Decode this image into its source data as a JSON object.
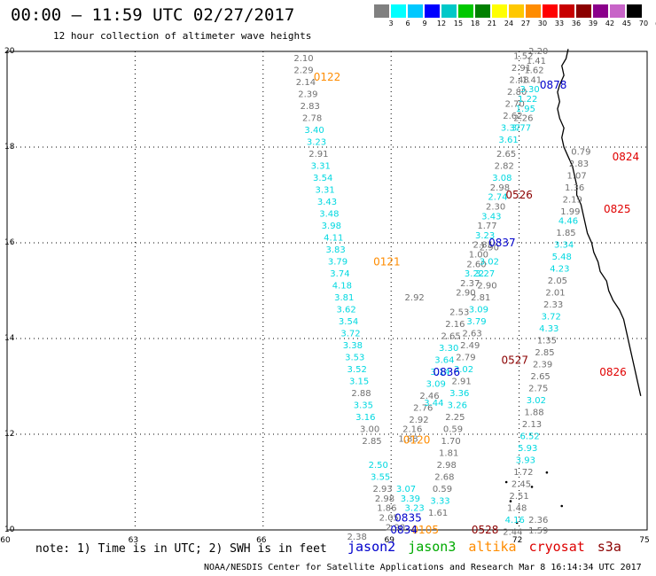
{
  "header": {
    "title": "00:00 – 11:59 UTC 02/27/2017",
    "subtitle": "12 hour collection of altimeter wave heights"
  },
  "colorbar": {
    "ticks": [
      "3",
      "6",
      "9",
      "12",
      "15",
      "18",
      "21",
      "24",
      "27",
      "30",
      "33",
      "36",
      "39",
      "42",
      "45",
      "70",
      "(ft)"
    ],
    "colors": [
      "#808080",
      "#00ffff",
      "#00c8ff",
      "#0000ff",
      "#00c8c8",
      "#00c800",
      "#008000",
      "#ffff00",
      "#ffc800",
      "#ff8c00",
      "#ff0000",
      "#c80000",
      "#8b0000",
      "#8b008b",
      "#c864c8",
      "#000000"
    ]
  },
  "map": {
    "x_ticks": [
      "60",
      "63",
      "66",
      "69",
      "72",
      "75"
    ],
    "y_ticks": [
      "10",
      "12",
      "14",
      "16",
      "18",
      "20"
    ],
    "x_range": [
      60,
      75
    ],
    "y_range": [
      10,
      20
    ]
  },
  "tracks": [
    {
      "label": "0122",
      "lon": 67.5,
      "lat": 19.46,
      "color": "#ff8c00"
    },
    {
      "label": "0121",
      "lon": 68.9,
      "lat": 15.6,
      "color": "#ff8c00"
    },
    {
      "label": "0120",
      "lon": 69.6,
      "lat": 11.88,
      "color": "#ff8c00"
    },
    {
      "label": "0105",
      "lon": 69.8,
      "lat": 10.0,
      "color": "#ff8c00"
    },
    {
      "label": "0878",
      "lon": 72.8,
      "lat": 19.3,
      "color": "#0000cc"
    },
    {
      "label": "0837",
      "lon": 71.6,
      "lat": 16.0,
      "color": "#0000cc"
    },
    {
      "label": "0836",
      "lon": 70.3,
      "lat": 13.3,
      "color": "#0000cc"
    },
    {
      "label": "0835",
      "lon": 69.4,
      "lat": 10.25,
      "color": "#0000cc"
    },
    {
      "label": "0834",
      "lon": 69.3,
      "lat": 10.0,
      "color": "#0000cc"
    },
    {
      "label": "0528",
      "lon": 71.2,
      "lat": 10.0,
      "color": "#8b0000"
    },
    {
      "label": "0526",
      "lon": 72.0,
      "lat": 17.0,
      "color": "#8b0000"
    },
    {
      "label": "0527",
      "lon": 71.9,
      "lat": 13.55,
      "color": "#8b0000"
    },
    {
      "label": "0824",
      "lon": 74.5,
      "lat": 17.8,
      "color": "#e00000"
    },
    {
      "label": "0825",
      "lon": 74.3,
      "lat": 16.7,
      "color": "#e00000"
    },
    {
      "label": "0826",
      "lon": 74.2,
      "lat": 13.3,
      "color": "#e00000"
    }
  ],
  "observations": [
    {
      "text": "2.10",
      "lon": 66.95,
      "lat": 19.85,
      "c": "g"
    },
    {
      "text": "2.29",
      "lon": 66.95,
      "lat": 19.6,
      "c": "g"
    },
    {
      "text": "2.14",
      "lon": 67.0,
      "lat": 19.35,
      "c": "g"
    },
    {
      "text": "2.39",
      "lon": 67.05,
      "lat": 19.1,
      "c": "g"
    },
    {
      "text": "2.83",
      "lon": 67.1,
      "lat": 18.85,
      "c": "g"
    },
    {
      "text": "2.78",
      "lon": 67.15,
      "lat": 18.6,
      "c": "g"
    },
    {
      "text": "3.40",
      "lon": 67.2,
      "lat": 18.35,
      "c": "c"
    },
    {
      "text": "3.23",
      "lon": 67.25,
      "lat": 18.1,
      "c": "c"
    },
    {
      "text": "2.91",
      "lon": 67.3,
      "lat": 17.85,
      "c": "g"
    },
    {
      "text": "3.31",
      "lon": 67.35,
      "lat": 17.6,
      "c": "c"
    },
    {
      "text": "3.54",
      "lon": 67.4,
      "lat": 17.35,
      "c": "c"
    },
    {
      "text": "3.31",
      "lon": 67.45,
      "lat": 17.1,
      "c": "c"
    },
    {
      "text": "3.43",
      "lon": 67.5,
      "lat": 16.85,
      "c": "c"
    },
    {
      "text": "3.48",
      "lon": 67.55,
      "lat": 16.6,
      "c": "c"
    },
    {
      "text": "3.98",
      "lon": 67.6,
      "lat": 16.35,
      "c": "c"
    },
    {
      "text": "4.11",
      "lon": 67.65,
      "lat": 16.1,
      "c": "c"
    },
    {
      "text": "3.83",
      "lon": 67.7,
      "lat": 15.85,
      "c": "c"
    },
    {
      "text": "3.79",
      "lon": 67.75,
      "lat": 15.6,
      "c": "c"
    },
    {
      "text": "3.74",
      "lon": 67.8,
      "lat": 15.35,
      "c": "c"
    },
    {
      "text": "4.18",
      "lon": 67.85,
      "lat": 15.1,
      "c": "c"
    },
    {
      "text": "3.81",
      "lon": 67.9,
      "lat": 14.85,
      "c": "c"
    },
    {
      "text": "3.62",
      "lon": 67.95,
      "lat": 14.6,
      "c": "c"
    },
    {
      "text": "3.54",
      "lon": 68.0,
      "lat": 14.35,
      "c": "c"
    },
    {
      "text": "3.72",
      "lon": 68.05,
      "lat": 14.1,
      "c": "c"
    },
    {
      "text": "3.38",
      "lon": 68.1,
      "lat": 13.85,
      "c": "c"
    },
    {
      "text": "3.53",
      "lon": 68.15,
      "lat": 13.6,
      "c": "c"
    },
    {
      "text": "3.52",
      "lon": 68.2,
      "lat": 13.35,
      "c": "c"
    },
    {
      "text": "3.15",
      "lon": 68.25,
      "lat": 13.1,
      "c": "c"
    },
    {
      "text": "2.88",
      "lon": 68.3,
      "lat": 12.85,
      "c": "g"
    },
    {
      "text": "3.35",
      "lon": 68.35,
      "lat": 12.6,
      "c": "c"
    },
    {
      "text": "3.16",
      "lon": 68.4,
      "lat": 12.35,
      "c": "c"
    },
    {
      "text": "3.00",
      "lon": 68.5,
      "lat": 12.1,
      "c": "g"
    },
    {
      "text": "2.85",
      "lon": 68.55,
      "lat": 11.85,
      "c": "g"
    },
    {
      "text": "2.50",
      "lon": 68.7,
      "lat": 11.35,
      "c": "c"
    },
    {
      "text": "3.55",
      "lon": 68.75,
      "lat": 11.1,
      "c": "c"
    },
    {
      "text": "2.93",
      "lon": 68.8,
      "lat": 10.85,
      "c": "g"
    },
    {
      "text": "2.98",
      "lon": 68.85,
      "lat": 10.65,
      "c": "g"
    },
    {
      "text": "1.86",
      "lon": 68.9,
      "lat": 10.45,
      "c": "g"
    },
    {
      "text": "2.05",
      "lon": 68.95,
      "lat": 10.25,
      "c": "g"
    },
    {
      "text": "2.90",
      "lon": 69.1,
      "lat": 10.05,
      "c": "g"
    },
    {
      "text": "2.38",
      "lon": 68.2,
      "lat": 9.85,
      "c": "g"
    },
    {
      "text": "2.92",
      "lon": 69.55,
      "lat": 14.85,
      "c": "g"
    },
    {
      "text": "2.46",
      "lon": 69.9,
      "lat": 12.8,
      "c": "g"
    },
    {
      "text": "2.76",
      "lon": 69.75,
      "lat": 12.55,
      "c": "g"
    },
    {
      "text": "2.92",
      "lon": 69.65,
      "lat": 12.3,
      "c": "g"
    },
    {
      "text": "2.16",
      "lon": 69.5,
      "lat": 12.1,
      "c": "g"
    },
    {
      "text": "1.88",
      "lon": 69.4,
      "lat": 11.9,
      "c": "g"
    },
    {
      "text": "3.44",
      "lon": 70.0,
      "lat": 12.65,
      "c": "c"
    },
    {
      "text": "3.09",
      "lon": 70.05,
      "lat": 13.05,
      "c": "c"
    },
    {
      "text": "3.14",
      "lon": 70.15,
      "lat": 13.3,
      "c": "c"
    },
    {
      "text": "3.64",
      "lon": 70.25,
      "lat": 13.55,
      "c": "c"
    },
    {
      "text": "3.30",
      "lon": 70.35,
      "lat": 13.8,
      "c": "c"
    },
    {
      "text": "2.65",
      "lon": 70.4,
      "lat": 14.05,
      "c": "g"
    },
    {
      "text": "2.16",
      "lon": 70.5,
      "lat": 14.3,
      "c": "g"
    },
    {
      "text": "2.53",
      "lon": 70.6,
      "lat": 14.55,
      "c": "g"
    },
    {
      "text": "2.90",
      "lon": 70.75,
      "lat": 14.95,
      "c": "g"
    },
    {
      "text": "2.37",
      "lon": 70.85,
      "lat": 15.15,
      "c": "g"
    },
    {
      "text": "3.22",
      "lon": 70.95,
      "lat": 15.35,
      "c": "c"
    },
    {
      "text": "2.60",
      "lon": 71.0,
      "lat": 15.55,
      "c": "g"
    },
    {
      "text": "1.00",
      "lon": 71.05,
      "lat": 15.75,
      "c": "g"
    },
    {
      "text": "2.85",
      "lon": 71.15,
      "lat": 15.95,
      "c": "g"
    },
    {
      "text": "3.23",
      "lon": 71.2,
      "lat": 16.15,
      "c": "c"
    },
    {
      "text": "1.77",
      "lon": 71.25,
      "lat": 16.35,
      "c": "g"
    },
    {
      "text": "3.43",
      "lon": 71.35,
      "lat": 16.55,
      "c": "c"
    },
    {
      "text": "2.30",
      "lon": 71.45,
      "lat": 16.75,
      "c": "g"
    },
    {
      "text": "2.74",
      "lon": 71.5,
      "lat": 16.95,
      "c": "c"
    },
    {
      "text": "2.98",
      "lon": 71.55,
      "lat": 17.15,
      "c": "g"
    },
    {
      "text": "3.08",
      "lon": 71.6,
      "lat": 17.35,
      "c": "c"
    },
    {
      "text": "2.82",
      "lon": 71.65,
      "lat": 17.6,
      "c": "g"
    },
    {
      "text": "2.65",
      "lon": 71.7,
      "lat": 17.85,
      "c": "g"
    },
    {
      "text": "3.61",
      "lon": 71.75,
      "lat": 18.15,
      "c": "c"
    },
    {
      "text": "3.37",
      "lon": 71.8,
      "lat": 18.4,
      "c": "c"
    },
    {
      "text": "2.62",
      "lon": 71.85,
      "lat": 18.65,
      "c": "g"
    },
    {
      "text": "2.70",
      "lon": 71.9,
      "lat": 18.9,
      "c": "g"
    },
    {
      "text": "2.80",
      "lon": 71.95,
      "lat": 19.15,
      "c": "g"
    },
    {
      "text": "2.48",
      "lon": 72.0,
      "lat": 19.4,
      "c": "g"
    },
    {
      "text": "2.91",
      "lon": 72.05,
      "lat": 19.65,
      "c": "g"
    },
    {
      "text": "1.52",
      "lon": 72.1,
      "lat": 19.9,
      "c": "g"
    },
    {
      "text": "2.20",
      "lon": 72.45,
      "lat": 20.0,
      "c": "g"
    },
    {
      "text": "1.41",
      "lon": 72.4,
      "lat": 19.8,
      "c": "g"
    },
    {
      "text": "1.62",
      "lon": 72.35,
      "lat": 19.6,
      "c": "g"
    },
    {
      "text": "1.41",
      "lon": 72.3,
      "lat": 19.4,
      "c": "g"
    },
    {
      "text": "3.30",
      "lon": 72.25,
      "lat": 19.2,
      "c": "c"
    },
    {
      "text": "1.22",
      "lon": 72.2,
      "lat": 19.0,
      "c": "c"
    },
    {
      "text": "1.95",
      "lon": 72.15,
      "lat": 18.8,
      "c": "c"
    },
    {
      "text": "2.26",
      "lon": 72.1,
      "lat": 18.6,
      "c": "g"
    },
    {
      "text": "3.77",
      "lon": 72.05,
      "lat": 18.4,
      "c": "c"
    },
    {
      "text": "2.90",
      "lon": 71.3,
      "lat": 15.9,
      "c": "g"
    },
    {
      "text": "3.02",
      "lon": 71.3,
      "lat": 15.6,
      "c": "c"
    },
    {
      "text": "3.27",
      "lon": 71.2,
      "lat": 15.35,
      "c": "c"
    },
    {
      "text": "2.90",
      "lon": 71.25,
      "lat": 15.1,
      "c": "g"
    },
    {
      "text": "2.81",
      "lon": 71.1,
      "lat": 14.85,
      "c": "g"
    },
    {
      "text": "3.09",
      "lon": 71.05,
      "lat": 14.6,
      "c": "c"
    },
    {
      "text": "3.79",
      "lon": 71.0,
      "lat": 14.35,
      "c": "c"
    },
    {
      "text": "2.63",
      "lon": 70.9,
      "lat": 14.1,
      "c": "g"
    },
    {
      "text": "2.49",
      "lon": 70.85,
      "lat": 13.85,
      "c": "g"
    },
    {
      "text": "2.79",
      "lon": 70.75,
      "lat": 13.6,
      "c": "g"
    },
    {
      "text": "3.02",
      "lon": 70.7,
      "lat": 13.35,
      "c": "c"
    },
    {
      "text": "2.91",
      "lon": 70.65,
      "lat": 13.1,
      "c": "g"
    },
    {
      "text": "3.36",
      "lon": 70.6,
      "lat": 12.85,
      "c": "c"
    },
    {
      "text": "3.26",
      "lon": 70.55,
      "lat": 12.6,
      "c": "c"
    },
    {
      "text": "2.25",
      "lon": 70.5,
      "lat": 12.35,
      "c": "g"
    },
    {
      "text": "0.59",
      "lon": 70.45,
      "lat": 12.1,
      "c": "g"
    },
    {
      "text": "1.70",
      "lon": 70.4,
      "lat": 11.85,
      "c": "g"
    },
    {
      "text": "1.81",
      "lon": 70.35,
      "lat": 11.6,
      "c": "g"
    },
    {
      "text": "2.98",
      "lon": 70.3,
      "lat": 11.35,
      "c": "g"
    },
    {
      "text": "2.68",
      "lon": 70.25,
      "lat": 11.1,
      "c": "g"
    },
    {
      "text": "0.59",
      "lon": 70.2,
      "lat": 10.85,
      "c": "g"
    },
    {
      "text": "3.33",
      "lon": 70.15,
      "lat": 10.6,
      "c": "c"
    },
    {
      "text": "1.61",
      "lon": 70.1,
      "lat": 10.35,
      "c": "g"
    },
    {
      "text": "3.23",
      "lon": 69.55,
      "lat": 10.45,
      "c": "c"
    },
    {
      "text": "3.39",
      "lon": 69.45,
      "lat": 10.65,
      "c": "c"
    },
    {
      "text": "3.07",
      "lon": 69.35,
      "lat": 10.85,
      "c": "c"
    },
    {
      "text": "0.79",
      "lon": 73.45,
      "lat": 17.9,
      "c": "g"
    },
    {
      "text": "2.83",
      "lon": 73.4,
      "lat": 17.65,
      "c": "g"
    },
    {
      "text": "1.07",
      "lon": 73.35,
      "lat": 17.4,
      "c": "g"
    },
    {
      "text": "1.36",
      "lon": 73.3,
      "lat": 17.15,
      "c": "g"
    },
    {
      "text": "2.19",
      "lon": 73.25,
      "lat": 16.9,
      "c": "g"
    },
    {
      "text": "1.99",
      "lon": 73.2,
      "lat": 16.65,
      "c": "g"
    },
    {
      "text": "4.46",
      "lon": 73.15,
      "lat": 16.45,
      "c": "c"
    },
    {
      "text": "1.85",
      "lon": 73.1,
      "lat": 16.2,
      "c": "g"
    },
    {
      "text": "3.34",
      "lon": 73.05,
      "lat": 15.95,
      "c": "c"
    },
    {
      "text": "5.48",
      "lon": 73.0,
      "lat": 15.7,
      "c": "c"
    },
    {
      "text": "4.23",
      "lon": 72.95,
      "lat": 15.45,
      "c": "c"
    },
    {
      "text": "2.05",
      "lon": 72.9,
      "lat": 15.2,
      "c": "g"
    },
    {
      "text": "2.01",
      "lon": 72.85,
      "lat": 14.95,
      "c": "g"
    },
    {
      "text": "2.33",
      "lon": 72.8,
      "lat": 14.7,
      "c": "g"
    },
    {
      "text": "3.72",
      "lon": 72.75,
      "lat": 14.45,
      "c": "c"
    },
    {
      "text": "4.33",
      "lon": 72.7,
      "lat": 14.2,
      "c": "c"
    },
    {
      "text": "1.35",
      "lon": 72.65,
      "lat": 13.95,
      "c": "g"
    },
    {
      "text": "2.85",
      "lon": 72.6,
      "lat": 13.7,
      "c": "g"
    },
    {
      "text": "2.39",
      "lon": 72.55,
      "lat": 13.45,
      "c": "g"
    },
    {
      "text": "2.65",
      "lon": 72.5,
      "lat": 13.2,
      "c": "g"
    },
    {
      "text": "2.75",
      "lon": 72.45,
      "lat": 12.95,
      "c": "g"
    },
    {
      "text": "3.02",
      "lon": 72.4,
      "lat": 12.7,
      "c": "c"
    },
    {
      "text": "1.88",
      "lon": 72.35,
      "lat": 12.45,
      "c": "g"
    },
    {
      "text": "2.13",
      "lon": 72.3,
      "lat": 12.2,
      "c": "g"
    },
    {
      "text": "6.52",
      "lon": 72.25,
      "lat": 11.95,
      "c": "c"
    },
    {
      "text": "5.93",
      "lon": 72.2,
      "lat": 11.7,
      "c": "c"
    },
    {
      "text": "3.93",
      "lon": 72.15,
      "lat": 11.45,
      "c": "c"
    },
    {
      "text": "1.72",
      "lon": 72.1,
      "lat": 11.2,
      "c": "g"
    },
    {
      "text": "2.45",
      "lon": 72.05,
      "lat": 10.95,
      "c": "g"
    },
    {
      "text": "2.51",
      "lon": 72.0,
      "lat": 10.7,
      "c": "g"
    },
    {
      "text": "1.48",
      "lon": 71.95,
      "lat": 10.45,
      "c": "g"
    },
    {
      "text": "4.16",
      "lon": 71.9,
      "lat": 10.2,
      "c": "c"
    },
    {
      "text": "2.44",
      "lon": 71.85,
      "lat": 9.95,
      "c": "g"
    },
    {
      "text": "2.36",
      "lon": 72.45,
      "lat": 10.2,
      "c": "g"
    },
    {
      "text": "1.59",
      "lon": 72.45,
      "lat": 9.98,
      "c": "g"
    }
  ],
  "note": "note: 1) Time is in UTC; 2) SWH is in feet",
  "legend": [
    {
      "label": "jason2",
      "color": "#0000cc"
    },
    {
      "label": "jason3",
      "color": "#00aa00"
    },
    {
      "label": "altika",
      "color": "#ff8c00"
    },
    {
      "label": "cryosat",
      "color": "#dd0000"
    },
    {
      "label": "s3a",
      "color": "#8b0000"
    }
  ],
  "footer": "NOAA/NESDIS Center for Satellite Applications and Research    Mar  8 16:14:34 UTC 2017",
  "colors": {
    "gray": "#707070",
    "cyan": "#00d8e0",
    "land": "#000000"
  }
}
